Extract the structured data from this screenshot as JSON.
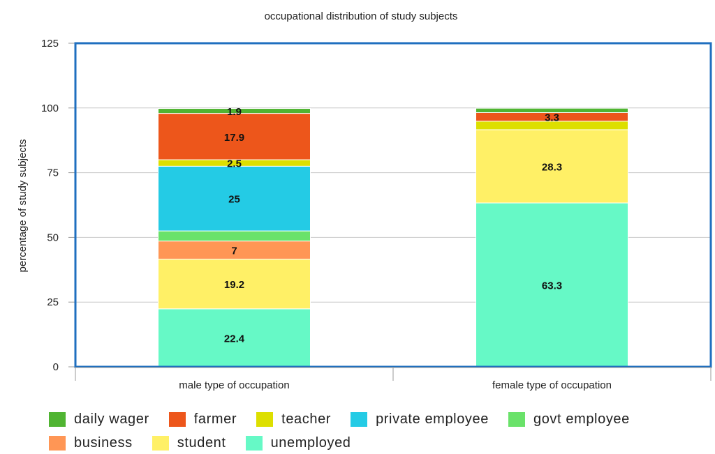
{
  "chart_data": {
    "type": "bar",
    "stacked": true,
    "title": "occupational distribution of study subjects",
    "xlabel": "",
    "ylabel": "percentage of study subjects",
    "ylim": [
      0,
      125
    ],
    "yticks": [
      0,
      25,
      50,
      75,
      100,
      125
    ],
    "grid": true,
    "legend_position": "bottom",
    "categories": [
      "male type of occupation",
      "female type of occupation"
    ],
    "series": [
      {
        "name": "unemployed",
        "color": "#66F9C6",
        "values": [
          22.4,
          63.3
        ],
        "labels": [
          "22.4",
          "63.3"
        ]
      },
      {
        "name": "student",
        "color": "#FFF066",
        "values": [
          19.2,
          28.3
        ],
        "labels": [
          "19.2",
          "28.3"
        ]
      },
      {
        "name": "business",
        "color": "#FF9655",
        "values": [
          7,
          0
        ],
        "labels": [
          "7",
          ""
        ]
      },
      {
        "name": "govt employee",
        "color": "#6AE26A",
        "values": [
          3.9,
          0
        ],
        "labels": [
          "",
          ""
        ]
      },
      {
        "name": "private employee",
        "color": "#24CBE5",
        "values": [
          25,
          0
        ],
        "labels": [
          "25",
          ""
        ]
      },
      {
        "name": "teacher",
        "color": "#DDDF00",
        "values": [
          2.5,
          3.3
        ],
        "labels": [
          "2.5",
          ""
        ]
      },
      {
        "name": "farmer",
        "color": "#ED561B",
        "values": [
          17.9,
          3.3
        ],
        "labels": [
          "17.9",
          "3.3"
        ]
      },
      {
        "name": "daily wager",
        "color": "#50B432",
        "values": [
          1.9,
          1.7
        ],
        "labels": [
          "1.9",
          ""
        ]
      }
    ],
    "legend_order": [
      "daily wager",
      "farmer",
      "teacher",
      "private employee",
      "govt employee",
      "business",
      "student",
      "unemployed"
    ]
  }
}
